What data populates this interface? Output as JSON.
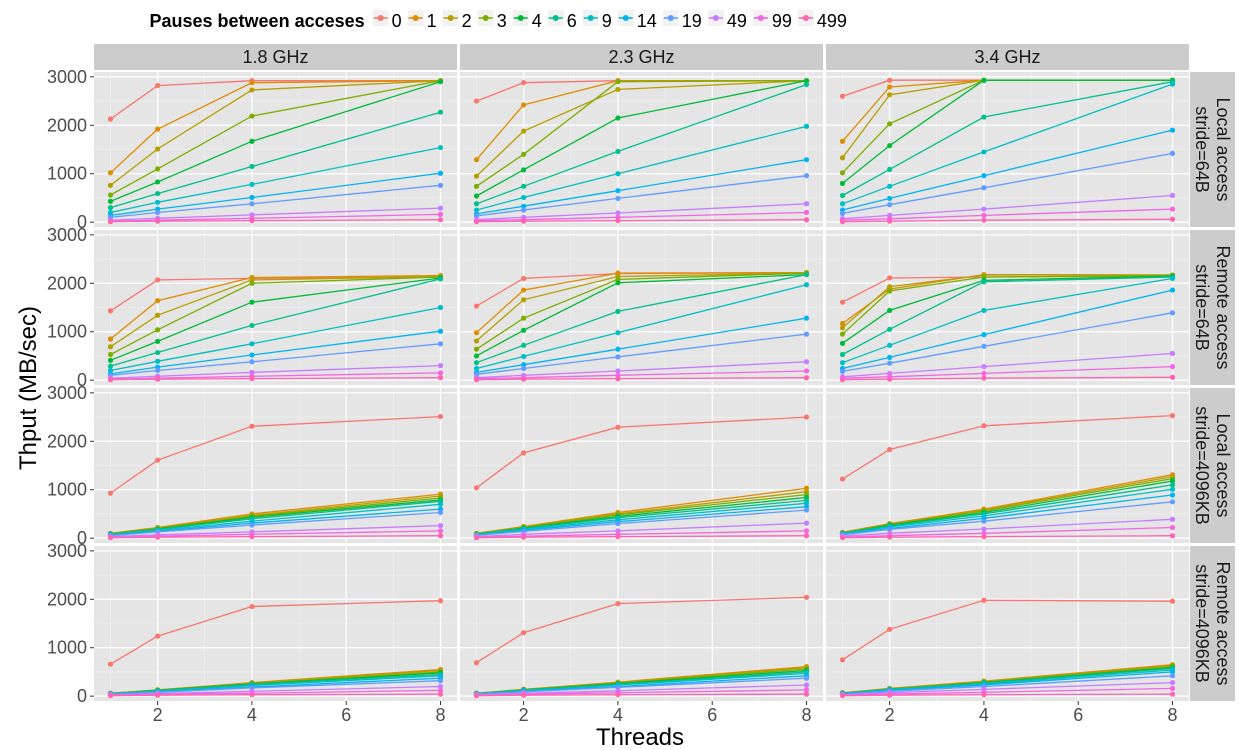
{
  "chart_data": {
    "type": "line",
    "xlabel": "Threads",
    "ylabel": "Thput (MB/sec)",
    "x": [
      1,
      2,
      4,
      8
    ],
    "xticks": [
      2,
      4,
      6,
      8
    ],
    "xlim": [
      0.65,
      8.35
    ],
    "yticks": [
      0,
      1000,
      2000,
      3000
    ],
    "ylim": [
      -100,
      3100
    ],
    "legend": {
      "title": "Pauses between acceses",
      "position": "top",
      "entries": [
        "0",
        "1",
        "2",
        "3",
        "4",
        "6",
        "9",
        "14",
        "19",
        "49",
        "99",
        "499"
      ],
      "colors": [
        "#F8766D",
        "#DE8C00",
        "#B79F00",
        "#7CAE00",
        "#00BA38",
        "#00C08B",
        "#00BFC4",
        "#00B4F0",
        "#619CFF",
        "#C77CFF",
        "#F564E3",
        "#FF64B0"
      ]
    },
    "column_labels": [
      "1.8 GHz",
      "2.3 GHz",
      "3.4 GHz"
    ],
    "row_labels": [
      [
        "Local access",
        "stride=64B"
      ],
      [
        "Remote access",
        "stride=64B"
      ],
      [
        "Local access",
        "stride=4096KB"
      ],
      [
        "Remote access",
        "stride=4096KB"
      ]
    ],
    "panels": [
      [
        [
          [
            2130,
            2820,
            2920,
            2920
          ],
          [
            1020,
            1920,
            2880,
            2920
          ],
          [
            760,
            1510,
            2730,
            2920
          ],
          [
            560,
            1100,
            2190,
            2920
          ],
          [
            430,
            830,
            1670,
            2900
          ],
          [
            300,
            590,
            1150,
            2270
          ],
          [
            200,
            410,
            780,
            1540
          ],
          [
            140,
            270,
            510,
            1010
          ],
          [
            100,
            200,
            380,
            760
          ],
          [
            40,
            80,
            150,
            290
          ],
          [
            20,
            40,
            80,
            160
          ],
          [
            10,
            20,
            30,
            50
          ]
        ],
        [
          [
            2500,
            2880,
            2920,
            2920
          ],
          [
            1290,
            2420,
            2920,
            2920
          ],
          [
            950,
            1880,
            2740,
            2920
          ],
          [
            740,
            1400,
            2900,
            2920
          ],
          [
            540,
            1080,
            2150,
            2920
          ],
          [
            380,
            740,
            1460,
            2840
          ],
          [
            250,
            510,
            1000,
            1980
          ],
          [
            170,
            330,
            650,
            1290
          ],
          [
            130,
            250,
            490,
            960
          ],
          [
            50,
            100,
            190,
            380
          ],
          [
            30,
            50,
            100,
            200
          ],
          [
            10,
            20,
            30,
            50
          ]
        ],
        [
          [
            2600,
            2930,
            2930,
            2930
          ],
          [
            1670,
            2790,
            2930,
            2930
          ],
          [
            1330,
            2630,
            2930,
            2930
          ],
          [
            1020,
            2030,
            2930,
            2930
          ],
          [
            800,
            1580,
            2930,
            2930
          ],
          [
            550,
            1090,
            2170,
            2900
          ],
          [
            380,
            740,
            1450,
            2850
          ],
          [
            250,
            490,
            960,
            1900
          ],
          [
            180,
            360,
            710,
            1420
          ],
          [
            70,
            140,
            270,
            550
          ],
          [
            40,
            70,
            140,
            270
          ],
          [
            10,
            20,
            40,
            60
          ]
        ]
      ],
      [
        [
          [
            1430,
            2070,
            2100,
            2130
          ],
          [
            850,
            1640,
            2120,
            2160
          ],
          [
            690,
            1340,
            2070,
            2140
          ],
          [
            530,
            1040,
            2000,
            2130
          ],
          [
            410,
            800,
            1610,
            2110
          ],
          [
            290,
            570,
            1130,
            2090
          ],
          [
            200,
            390,
            750,
            1500
          ],
          [
            130,
            270,
            520,
            1010
          ],
          [
            100,
            200,
            380,
            750
          ],
          [
            40,
            80,
            160,
            300
          ],
          [
            20,
            40,
            80,
            150
          ],
          [
            10,
            20,
            30,
            50
          ]
        ],
        [
          [
            1530,
            2100,
            2200,
            2220
          ],
          [
            980,
            1860,
            2210,
            2220
          ],
          [
            810,
            1660,
            2140,
            2210
          ],
          [
            640,
            1280,
            2080,
            2210
          ],
          [
            500,
            1030,
            2010,
            2180
          ],
          [
            360,
            720,
            1420,
            2180
          ],
          [
            240,
            490,
            980,
            1970
          ],
          [
            160,
            320,
            640,
            1280
          ],
          [
            120,
            240,
            480,
            950
          ],
          [
            50,
            100,
            190,
            380
          ],
          [
            30,
            50,
            100,
            190
          ],
          [
            10,
            20,
            30,
            50
          ]
        ],
        [
          [
            1610,
            2110,
            2130,
            2150
          ],
          [
            1170,
            1880,
            2180,
            2170
          ],
          [
            1080,
            1930,
            2170,
            2170
          ],
          [
            950,
            1840,
            2130,
            2160
          ],
          [
            760,
            1440,
            2060,
            2150
          ],
          [
            530,
            1050,
            2030,
            2130
          ],
          [
            360,
            720,
            1440,
            2100
          ],
          [
            240,
            470,
            940,
            1860
          ],
          [
            180,
            350,
            700,
            1390
          ],
          [
            70,
            140,
            280,
            550
          ],
          [
            40,
            70,
            140,
            280
          ],
          [
            10,
            20,
            40,
            60
          ]
        ]
      ],
      [
        [
          [
            930,
            1610,
            2310,
            2510
          ],
          [
            100,
            220,
            500,
            910
          ],
          [
            90,
            210,
            470,
            870
          ],
          [
            90,
            200,
            450,
            830
          ],
          [
            80,
            190,
            430,
            790
          ],
          [
            80,
            180,
            400,
            760
          ],
          [
            70,
            160,
            350,
            700
          ],
          [
            60,
            140,
            310,
            600
          ],
          [
            50,
            130,
            270,
            530
          ],
          [
            30,
            70,
            130,
            260
          ],
          [
            20,
            40,
            80,
            150
          ],
          [
            10,
            20,
            30,
            50
          ]
        ],
        [
          [
            1040,
            1760,
            2290,
            2500
          ],
          [
            100,
            240,
            530,
            1030
          ],
          [
            90,
            230,
            500,
            960
          ],
          [
            90,
            220,
            480,
            900
          ],
          [
            80,
            210,
            450,
            840
          ],
          [
            80,
            200,
            420,
            780
          ],
          [
            70,
            180,
            380,
            720
          ],
          [
            60,
            160,
            340,
            650
          ],
          [
            60,
            140,
            300,
            580
          ],
          [
            30,
            80,
            150,
            310
          ],
          [
            20,
            40,
            80,
            150
          ],
          [
            10,
            20,
            30,
            50
          ]
        ],
        [
          [
            1220,
            1830,
            2320,
            2530
          ],
          [
            120,
            300,
            600,
            1310
          ],
          [
            110,
            290,
            580,
            1270
          ],
          [
            110,
            280,
            560,
            1230
          ],
          [
            100,
            270,
            530,
            1180
          ],
          [
            100,
            250,
            500,
            1100
          ],
          [
            90,
            230,
            460,
            1010
          ],
          [
            80,
            200,
            410,
            890
          ],
          [
            70,
            180,
            350,
            750
          ],
          [
            40,
            100,
            190,
            390
          ],
          [
            20,
            50,
            100,
            220
          ],
          [
            10,
            20,
            30,
            50
          ]
        ]
      ],
      [
        [
          [
            660,
            1240,
            1850,
            1970
          ],
          [
            60,
            130,
            280,
            550
          ],
          [
            60,
            130,
            270,
            530
          ],
          [
            60,
            120,
            260,
            500
          ],
          [
            50,
            120,
            250,
            480
          ],
          [
            50,
            110,
            240,
            450
          ],
          [
            50,
            100,
            220,
            420
          ],
          [
            40,
            90,
            190,
            370
          ],
          [
            40,
            80,
            170,
            320
          ],
          [
            30,
            50,
            100,
            200
          ],
          [
            20,
            40,
            60,
            120
          ],
          [
            10,
            20,
            30,
            40
          ]
        ],
        [
          [
            690,
            1310,
            1910,
            2040
          ],
          [
            60,
            140,
            290,
            610
          ],
          [
            60,
            140,
            280,
            590
          ],
          [
            60,
            130,
            270,
            560
          ],
          [
            50,
            130,
            260,
            530
          ],
          [
            50,
            120,
            240,
            500
          ],
          [
            50,
            110,
            230,
            470
          ],
          [
            40,
            100,
            200,
            420
          ],
          [
            40,
            90,
            180,
            370
          ],
          [
            30,
            60,
            110,
            230
          ],
          [
            20,
            40,
            70,
            130
          ],
          [
            10,
            20,
            30,
            40
          ]
        ],
        [
          [
            750,
            1380,
            1980,
            1960
          ],
          [
            70,
            160,
            310,
            650
          ],
          [
            70,
            150,
            300,
            630
          ],
          [
            60,
            150,
            290,
            610
          ],
          [
            60,
            140,
            280,
            590
          ],
          [
            60,
            140,
            270,
            570
          ],
          [
            50,
            130,
            250,
            540
          ],
          [
            50,
            120,
            230,
            500
          ],
          [
            40,
            100,
            200,
            420
          ],
          [
            30,
            70,
            140,
            280
          ],
          [
            20,
            40,
            80,
            160
          ],
          [
            10,
            20,
            30,
            40
          ]
        ]
      ]
    ]
  }
}
